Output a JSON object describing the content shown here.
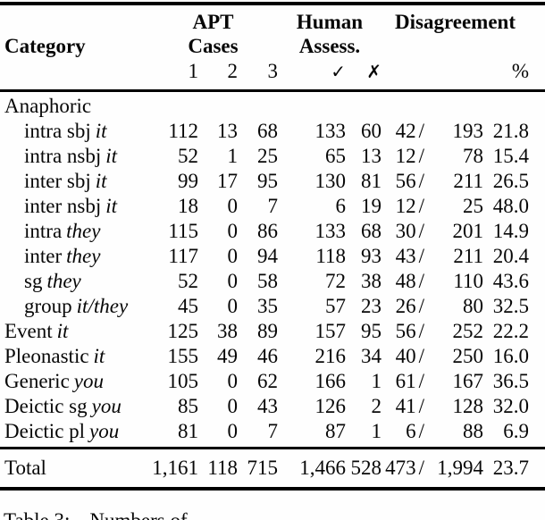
{
  "table": {
    "header": {
      "category": "Category",
      "groups": [
        {
          "line1": "APT",
          "line2": "Cases"
        },
        {
          "line1": "Human",
          "line2": "Assess."
        },
        {
          "line1": "Disagreement",
          "line2": ""
        }
      ],
      "subcols": {
        "apt1": "1",
        "apt2": "2",
        "apt3": "3",
        "check": "✓",
        "cross": "✗",
        "percent": "%"
      }
    },
    "rows": [
      {
        "category": "Anaphoric",
        "pronoun": "",
        "apt1": "",
        "apt2": "",
        "apt3": "",
        "yes": "",
        "no": "",
        "dis": "",
        "slash": "",
        "tot": "",
        "pct": ""
      },
      {
        "category": "intra sbj",
        "pronoun": "it",
        "apt1": "112",
        "apt2": "13",
        "apt3": "68",
        "yes": "133",
        "no": "60",
        "dis": "42",
        "slash": "/",
        "tot": "193",
        "pct": "21.8"
      },
      {
        "category": "intra nsbj",
        "pronoun": "it",
        "apt1": "52",
        "apt2": "1",
        "apt3": "25",
        "yes": "65",
        "no": "13",
        "dis": "12",
        "slash": "/",
        "tot": "78",
        "pct": "15.4"
      },
      {
        "category": "inter sbj",
        "pronoun": "it",
        "apt1": "99",
        "apt2": "17",
        "apt3": "95",
        "yes": "130",
        "no": "81",
        "dis": "56",
        "slash": "/",
        "tot": "211",
        "pct": "26.5"
      },
      {
        "category": "inter nsbj",
        "pronoun": "it",
        "apt1": "18",
        "apt2": "0",
        "apt3": "7",
        "yes": "6",
        "no": "19",
        "dis": "12",
        "slash": "/",
        "tot": "25",
        "pct": "48.0"
      },
      {
        "category": "intra",
        "pronoun": "they",
        "apt1": "115",
        "apt2": "0",
        "apt3": "86",
        "yes": "133",
        "no": "68",
        "dis": "30",
        "slash": "/",
        "tot": "201",
        "pct": "14.9"
      },
      {
        "category": "inter",
        "pronoun": "they",
        "apt1": "117",
        "apt2": "0",
        "apt3": "94",
        "yes": "118",
        "no": "93",
        "dis": "43",
        "slash": "/",
        "tot": "211",
        "pct": "20.4"
      },
      {
        "category": "sg",
        "pronoun": "they",
        "apt1": "52",
        "apt2": "0",
        "apt3": "58",
        "yes": "72",
        "no": "38",
        "dis": "48",
        "slash": "/",
        "tot": "110",
        "pct": "43.6"
      },
      {
        "category": "group",
        "pronoun": "it/they",
        "apt1": "45",
        "apt2": "0",
        "apt3": "35",
        "yes": "57",
        "no": "23",
        "dis": "26",
        "slash": "/",
        "tot": "80",
        "pct": "32.5"
      },
      {
        "category": "Event",
        "pronoun": "it",
        "apt1": "125",
        "apt2": "38",
        "apt3": "89",
        "yes": "157",
        "no": "95",
        "dis": "56",
        "slash": "/",
        "tot": "252",
        "pct": "22.2"
      },
      {
        "category": "Pleonastic",
        "pronoun": "it",
        "apt1": "155",
        "apt2": "49",
        "apt3": "46",
        "yes": "216",
        "no": "34",
        "dis": "40",
        "slash": "/",
        "tot": "250",
        "pct": "16.0"
      },
      {
        "category": "Generic",
        "pronoun": "you",
        "apt1": "105",
        "apt2": "0",
        "apt3": "62",
        "yes": "166",
        "no": "1",
        "dis": "61",
        "slash": "/",
        "tot": "167",
        "pct": "36.5"
      },
      {
        "category": "Deictic sg",
        "pronoun": "you",
        "apt1": "85",
        "apt2": "0",
        "apt3": "43",
        "yes": "126",
        "no": "2",
        "dis": "41",
        "slash": "/",
        "tot": "128",
        "pct": "32.0"
      },
      {
        "category": "Deictic pl",
        "pronoun": "you",
        "apt1": "81",
        "apt2": "0",
        "apt3": "7",
        "yes": "87",
        "no": "1",
        "dis": "6",
        "slash": "/",
        "tot": "88",
        "pct": "6.9"
      }
    ],
    "total": {
      "label": "Total",
      "apt1": "1,161",
      "apt2": "118",
      "apt3": "715",
      "yes": "1,466",
      "no": "528",
      "dis": "473",
      "slash": "/",
      "tot": "1,994",
      "pct": "23.7"
    }
  },
  "caption": {
    "label": "Table 3:",
    "text": "Numbers of"
  }
}
